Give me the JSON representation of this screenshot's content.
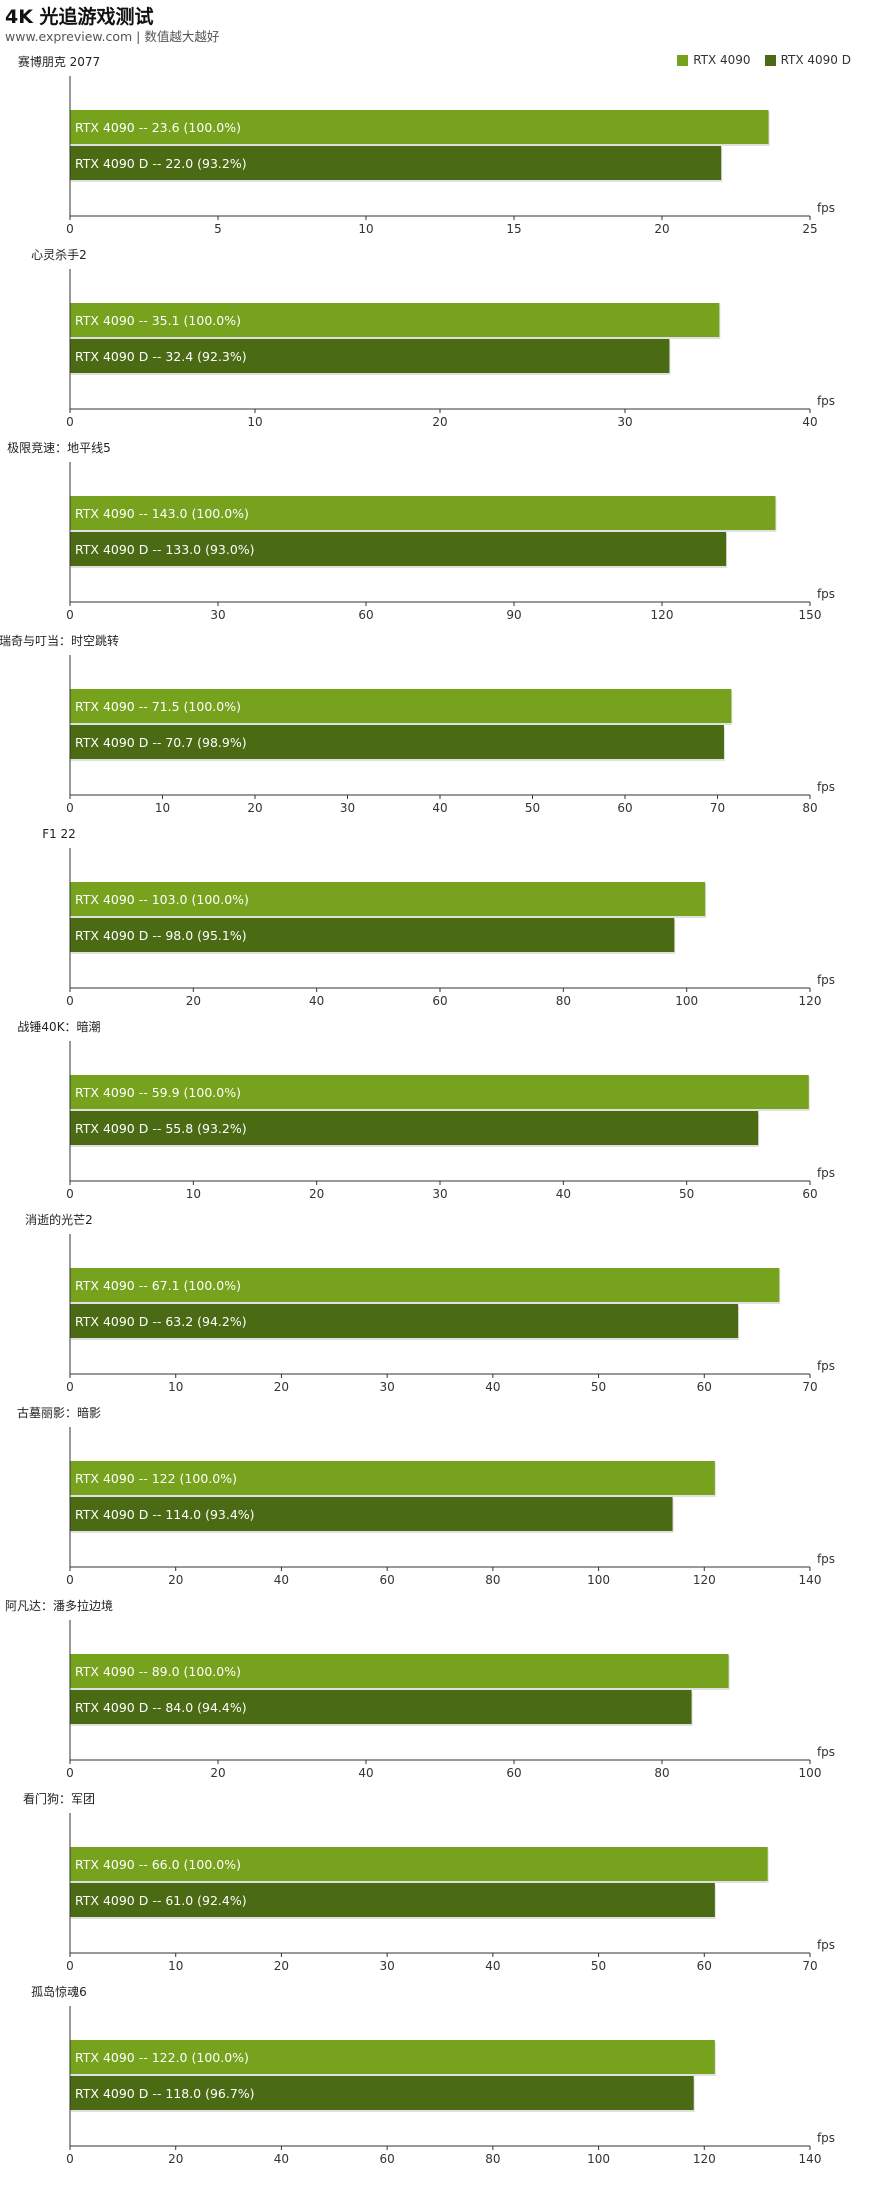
{
  "header": {
    "title": "4K 光追游戏测试",
    "subtitle": "www.expreview.com | 数值越大越好"
  },
  "legend": [
    {
      "label": "RTX 4090",
      "color": "#76a21e"
    },
    {
      "label": "RTX 4090 D",
      "color": "#4a6a14"
    }
  ],
  "unit": "fps",
  "bar_label_separator": "--",
  "chart_data": [
    {
      "type": "bar",
      "title": "赛博朋克 2077",
      "xlim": [
        0,
        25
      ],
      "ticks": [
        0,
        5,
        10,
        15,
        20,
        25
      ],
      "xlabel": "fps",
      "series": [
        {
          "name": "RTX 4090",
          "value": 23.6,
          "value_text": "23.6",
          "pct": "100.0%"
        },
        {
          "name": "RTX 4090 D",
          "value": 22.0,
          "value_text": "22.0",
          "pct": "93.2%"
        }
      ]
    },
    {
      "type": "bar",
      "title": "心灵杀手2",
      "xlim": [
        0,
        40
      ],
      "ticks": [
        0,
        10,
        20,
        30,
        40
      ],
      "xlabel": "fps",
      "series": [
        {
          "name": "RTX 4090",
          "value": 35.1,
          "value_text": "35.1",
          "pct": "100.0%"
        },
        {
          "name": "RTX 4090 D",
          "value": 32.4,
          "value_text": "32.4",
          "pct": "92.3%"
        }
      ]
    },
    {
      "type": "bar",
      "title": "极限竞速：地平线5",
      "xlim": [
        0,
        150
      ],
      "ticks": [
        0,
        30,
        60,
        90,
        120,
        150
      ],
      "xlabel": "fps",
      "series": [
        {
          "name": "RTX 4090",
          "value": 143.0,
          "value_text": "143.0",
          "pct": "100.0%"
        },
        {
          "name": "RTX 4090 D",
          "value": 133.0,
          "value_text": "133.0",
          "pct": "93.0%"
        }
      ]
    },
    {
      "type": "bar",
      "title": "瑞奇与叮当：时空跳转",
      "xlim": [
        0,
        80
      ],
      "ticks": [
        0,
        10,
        20,
        30,
        40,
        50,
        60,
        70,
        80
      ],
      "xlabel": "fps",
      "series": [
        {
          "name": "RTX 4090",
          "value": 71.5,
          "value_text": "71.5",
          "pct": "100.0%"
        },
        {
          "name": "RTX 4090 D",
          "value": 70.7,
          "value_text": "70.7",
          "pct": "98.9%"
        }
      ]
    },
    {
      "type": "bar",
      "title": "F1 22",
      "xlim": [
        0,
        120
      ],
      "ticks": [
        0,
        20,
        40,
        60,
        80,
        100,
        120
      ],
      "xlabel": "fps",
      "series": [
        {
          "name": "RTX 4090",
          "value": 103.0,
          "value_text": "103.0",
          "pct": "100.0%"
        },
        {
          "name": "RTX 4090 D",
          "value": 98.0,
          "value_text": "98.0",
          "pct": "95.1%"
        }
      ]
    },
    {
      "type": "bar",
      "title": "战锤40K：暗潮",
      "xlim": [
        0,
        60
      ],
      "ticks": [
        0,
        10,
        20,
        30,
        40,
        50,
        60
      ],
      "xlabel": "fps",
      "series": [
        {
          "name": "RTX 4090",
          "value": 59.9,
          "value_text": "59.9",
          "pct": "100.0%"
        },
        {
          "name": "RTX 4090 D",
          "value": 55.8,
          "value_text": "55.8",
          "pct": "93.2%"
        }
      ]
    },
    {
      "type": "bar",
      "title": "消逝的光芒2",
      "xlim": [
        0,
        70
      ],
      "ticks": [
        0,
        10,
        20,
        30,
        40,
        50,
        60,
        70
      ],
      "xlabel": "fps",
      "series": [
        {
          "name": "RTX 4090",
          "value": 67.1,
          "value_text": "67.1",
          "pct": "100.0%"
        },
        {
          "name": "RTX 4090 D",
          "value": 63.2,
          "value_text": "63.2",
          "pct": "94.2%"
        }
      ]
    },
    {
      "type": "bar",
      "title": "古墓丽影：暗影",
      "xlim": [
        0,
        140
      ],
      "ticks": [
        0,
        20,
        40,
        60,
        80,
        100,
        120,
        140
      ],
      "xlabel": "fps",
      "series": [
        {
          "name": "RTX 4090",
          "value": 122,
          "value_text": "122",
          "pct": "100.0%"
        },
        {
          "name": "RTX 4090 D",
          "value": 114.0,
          "value_text": "114.0",
          "pct": "93.4%"
        }
      ]
    },
    {
      "type": "bar",
      "title": "阿凡达：潘多拉边境",
      "xlim": [
        0,
        100
      ],
      "ticks": [
        0,
        20,
        40,
        60,
        80,
        100
      ],
      "xlabel": "fps",
      "series": [
        {
          "name": "RTX 4090",
          "value": 89.0,
          "value_text": "89.0",
          "pct": "100.0%"
        },
        {
          "name": "RTX 4090 D",
          "value": 84.0,
          "value_text": "84.0",
          "pct": "94.4%"
        }
      ]
    },
    {
      "type": "bar",
      "title": "看门狗：军团",
      "xlim": [
        0,
        70
      ],
      "ticks": [
        0,
        10,
        20,
        30,
        40,
        50,
        60,
        70
      ],
      "xlabel": "fps",
      "series": [
        {
          "name": "RTX 4090",
          "value": 66.0,
          "value_text": "66.0",
          "pct": "100.0%"
        },
        {
          "name": "RTX 4090 D",
          "value": 61.0,
          "value_text": "61.0",
          "pct": "92.4%"
        }
      ]
    },
    {
      "type": "bar",
      "title": "孤岛惊魂6",
      "xlim": [
        0,
        140
      ],
      "ticks": [
        0,
        20,
        40,
        60,
        80,
        100,
        120,
        140
      ],
      "xlabel": "fps",
      "series": [
        {
          "name": "RTX 4090",
          "value": 122.0,
          "value_text": "122.0",
          "pct": "100.0%"
        },
        {
          "name": "RTX 4090 D",
          "value": 118.0,
          "value_text": "118.0",
          "pct": "96.7%"
        }
      ]
    }
  ]
}
